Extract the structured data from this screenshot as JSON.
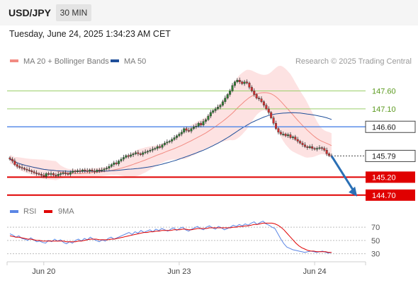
{
  "header": {
    "pair": "USD/JPY",
    "timeframe": "30 MIN"
  },
  "date_text": "Tuesday, June 24, 2025 1:34:23 AM CET",
  "legend": {
    "bollinger": {
      "label": "MA 20 + Bollinger Bands",
      "color": "#f28b82"
    },
    "ma50": {
      "label": "MA 50",
      "color": "#1f4f9a"
    },
    "rsi": {
      "label": "RSI",
      "color": "#5b86e5"
    },
    "rsi_ma": {
      "label": "9MA",
      "color": "#e00000"
    }
  },
  "credit": "Research © 2025 Trading Central",
  "colors": {
    "candle_up": "#2e7d32",
    "candle_down": "#d32f2f",
    "target_arrow": "#2a6fb5"
  },
  "chart_data": [
    {
      "type": "candlestick",
      "title": "USD/JPY",
      "ylim": [
        144.46,
        148.16
      ],
      "x_ticks": [
        {
          "index": 14,
          "label": "Jun 20"
        },
        {
          "index": 70,
          "label": "Jun 23"
        },
        {
          "index": 126,
          "label": "Jun 24"
        }
      ],
      "levels": [
        {
          "value": 147.6,
          "label": "147.60",
          "style": "resistance-thin",
          "color": "#9bcf6a",
          "text_color": "#5b9a1f"
        },
        {
          "value": 147.1,
          "label": "147.10",
          "style": "resistance-thin",
          "color": "#9bcf6a",
          "text_color": "#5b9a1f"
        },
        {
          "value": 146.6,
          "label": "146.60",
          "style": "pivot",
          "color": "#5b8ee8"
        },
        {
          "value": 145.79,
          "label": "145.79",
          "style": "last-price",
          "color": "#333333"
        },
        {
          "value": 145.2,
          "label": "145.20",
          "style": "support",
          "color": "#e00000"
        },
        {
          "value": 144.7,
          "label": "144.70",
          "style": "support",
          "color": "#e00000"
        }
      ],
      "projection": {
        "from_index": 133,
        "from": 145.79,
        "to_index": 143,
        "to": 144.7
      },
      "close": [
        145.7,
        145.65,
        145.55,
        145.5,
        145.47,
        145.45,
        145.42,
        145.4,
        145.38,
        145.35,
        145.32,
        145.3,
        145.28,
        145.25,
        145.22,
        145.3,
        145.28,
        145.3,
        145.26,
        145.24,
        145.28,
        145.3,
        145.32,
        145.3,
        145.28,
        145.33,
        145.37,
        145.35,
        145.38,
        145.36,
        145.4,
        145.38,
        145.36,
        145.4,
        145.37,
        145.35,
        145.4,
        145.38,
        145.4,
        145.43,
        145.45,
        145.5,
        145.55,
        145.6,
        145.57,
        145.65,
        145.7,
        145.75,
        145.8,
        145.78,
        145.82,
        145.85,
        145.88,
        145.85,
        145.83,
        145.88,
        145.9,
        145.92,
        145.95,
        145.98,
        146.0,
        146.05,
        146.03,
        146.1,
        146.15,
        146.18,
        146.2,
        146.25,
        146.3,
        146.35,
        146.4,
        146.45,
        146.55,
        146.5,
        146.48,
        146.55,
        146.6,
        146.62,
        146.7,
        146.65,
        146.75,
        146.8,
        146.9,
        147.0,
        147.05,
        147.1,
        147.15,
        147.2,
        147.3,
        147.4,
        147.5,
        147.6,
        147.75,
        147.85,
        147.9,
        147.85,
        147.8,
        147.85,
        147.82,
        147.7,
        147.6,
        147.5,
        147.4,
        147.38,
        147.3,
        147.2,
        147.1,
        147.0,
        146.85,
        146.7,
        146.55,
        146.45,
        146.4,
        146.4,
        146.35,
        146.38,
        146.3,
        146.32,
        146.25,
        146.2,
        146.15,
        146.1,
        146.05,
        146.02,
        146.05,
        146.0,
        145.98,
        146.0,
        146.02,
        146.0,
        145.95,
        145.85,
        145.8,
        145.79
      ]
    },
    {
      "type": "line",
      "series": [
        {
          "name": "RSI",
          "values": [
            60,
            58,
            55,
            57,
            53,
            52,
            50,
            54,
            51,
            48,
            49,
            47,
            46,
            50,
            48,
            52,
            49,
            51,
            47,
            45,
            48,
            46,
            50,
            52,
            49,
            53,
            51,
            55,
            52,
            50,
            48,
            51,
            49,
            53,
            55,
            52,
            54,
            56,
            58,
            60,
            62,
            59,
            63,
            61,
            65,
            62,
            64,
            66,
            63,
            67,
            65,
            68,
            66,
            64,
            67,
            69,
            65,
            68,
            70,
            66,
            64,
            67,
            69,
            71,
            68,
            66,
            70,
            72,
            69,
            67,
            71,
            69,
            66,
            68,
            70,
            73,
            71,
            74,
            72,
            75,
            73,
            76,
            78,
            74,
            77,
            79,
            75,
            73,
            70,
            68,
            60,
            52,
            45,
            40,
            38,
            36,
            35,
            34,
            33,
            32,
            33,
            34,
            33,
            32,
            33,
            34,
            32,
            31,
            32
          ]
        },
        {
          "name": "9MA",
          "values": [
            57,
            56,
            55,
            55,
            54,
            53,
            52,
            52,
            51,
            50,
            50,
            49,
            49,
            49,
            49,
            49,
            49,
            49,
            49,
            48,
            48,
            48,
            48,
            49,
            49,
            50,
            51,
            52,
            52,
            52,
            51,
            51,
            51,
            51,
            52,
            52,
            53,
            54,
            55,
            56,
            57,
            58,
            59,
            60,
            61,
            62,
            62,
            63,
            63,
            64,
            64,
            65,
            65,
            65,
            65,
            66,
            66,
            66,
            67,
            67,
            66,
            66,
            67,
            68,
            68,
            68,
            68,
            69,
            69,
            69,
            69,
            69,
            69,
            69,
            69,
            70,
            70,
            71,
            71,
            72,
            72,
            73,
            74,
            74,
            75,
            76,
            76,
            76,
            76,
            75,
            73,
            70,
            66,
            61,
            56,
            51,
            46,
            42,
            39,
            37,
            35,
            34,
            34,
            33,
            33,
            33,
            33,
            32,
            32
          ]
        }
      ],
      "ylim": [
        20,
        85
      ],
      "y_ticks": [
        30,
        50,
        70
      ]
    }
  ]
}
